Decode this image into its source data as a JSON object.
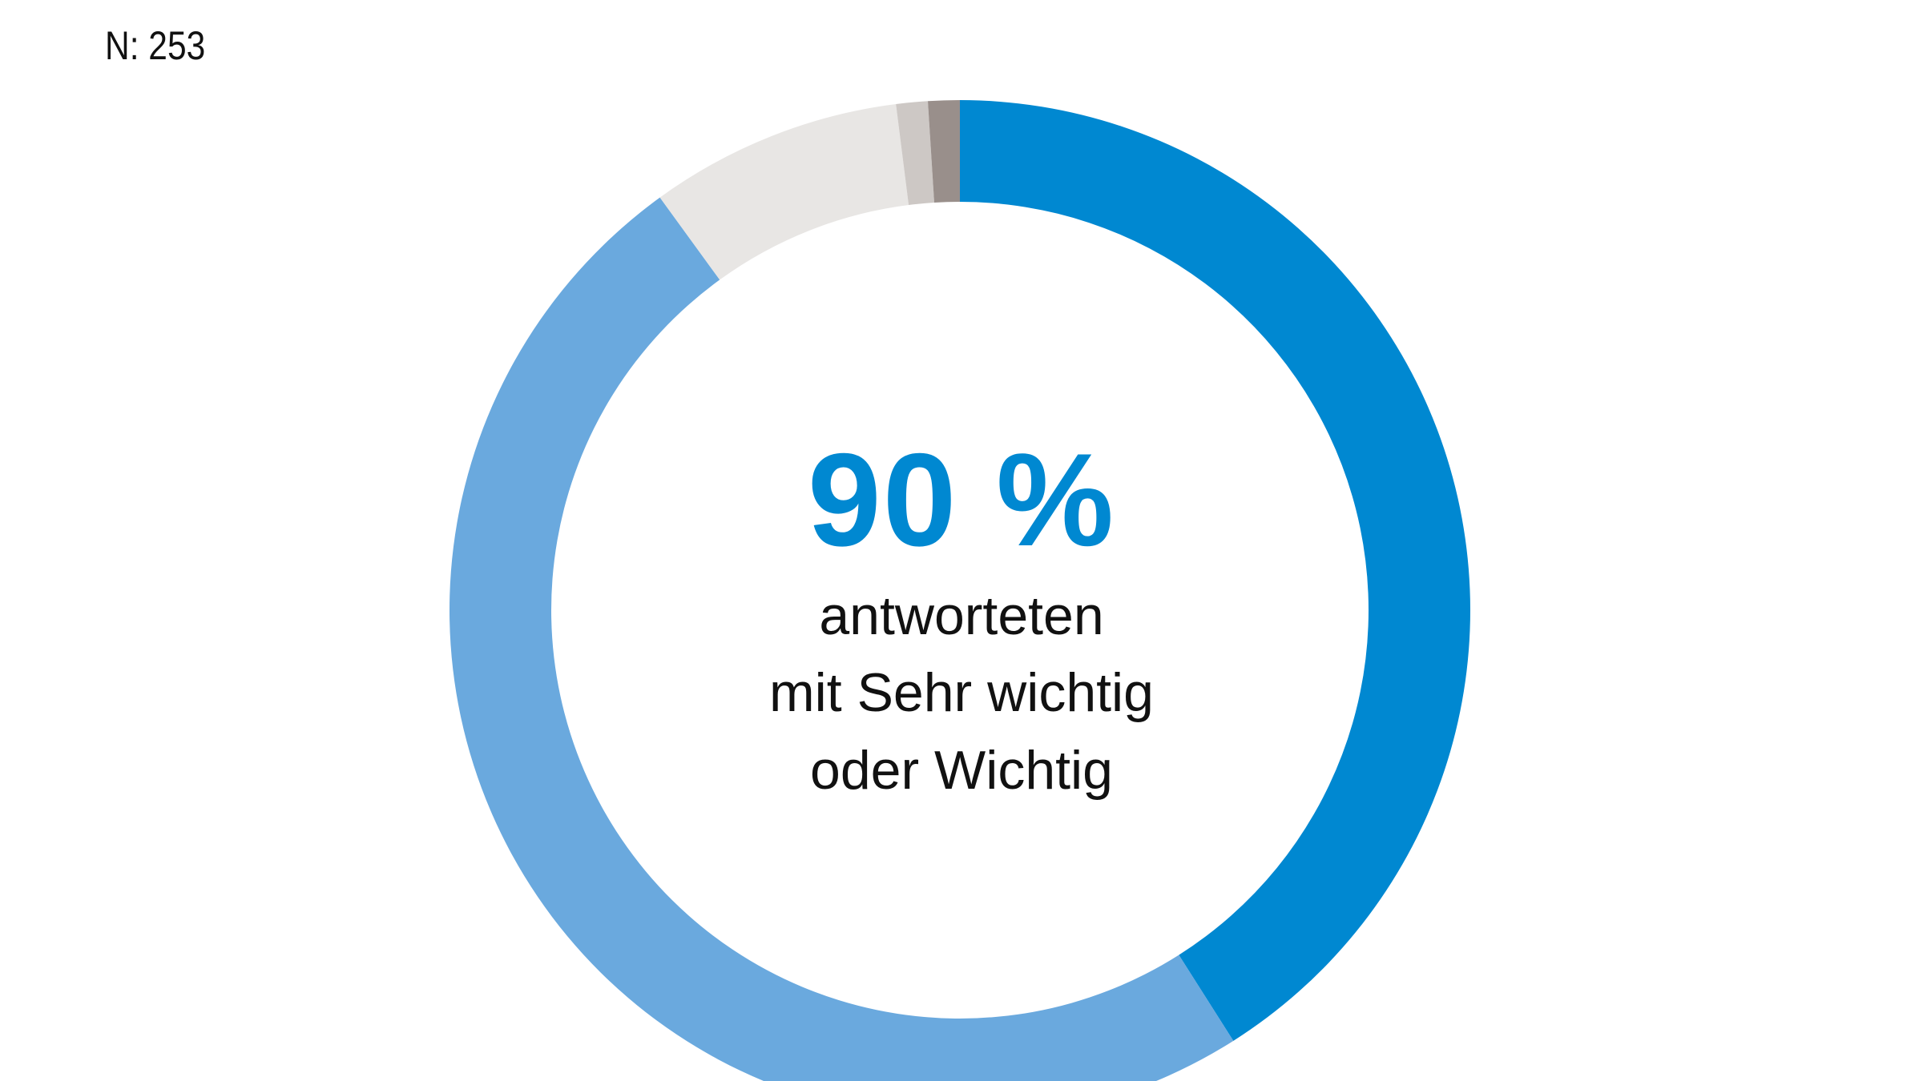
{
  "chart_data": {
    "type": "pie",
    "style": "donut",
    "n_label": "N: 253",
    "slices": [
      {
        "value": 41,
        "color": "#0088d1"
      },
      {
        "value": 49,
        "color": "#6aa9de"
      },
      {
        "value": 8,
        "color": "#e8e6e4"
      },
      {
        "value": 1,
        "color": "#cdc8c5"
      },
      {
        "value": 1,
        "color": "#998f8b"
      }
    ],
    "center_value": "90 %",
    "center_text": [
      "antworteten",
      "mit Sehr wichtig",
      "oder Wichtig"
    ],
    "start": "top",
    "direction": "clockwise"
  }
}
